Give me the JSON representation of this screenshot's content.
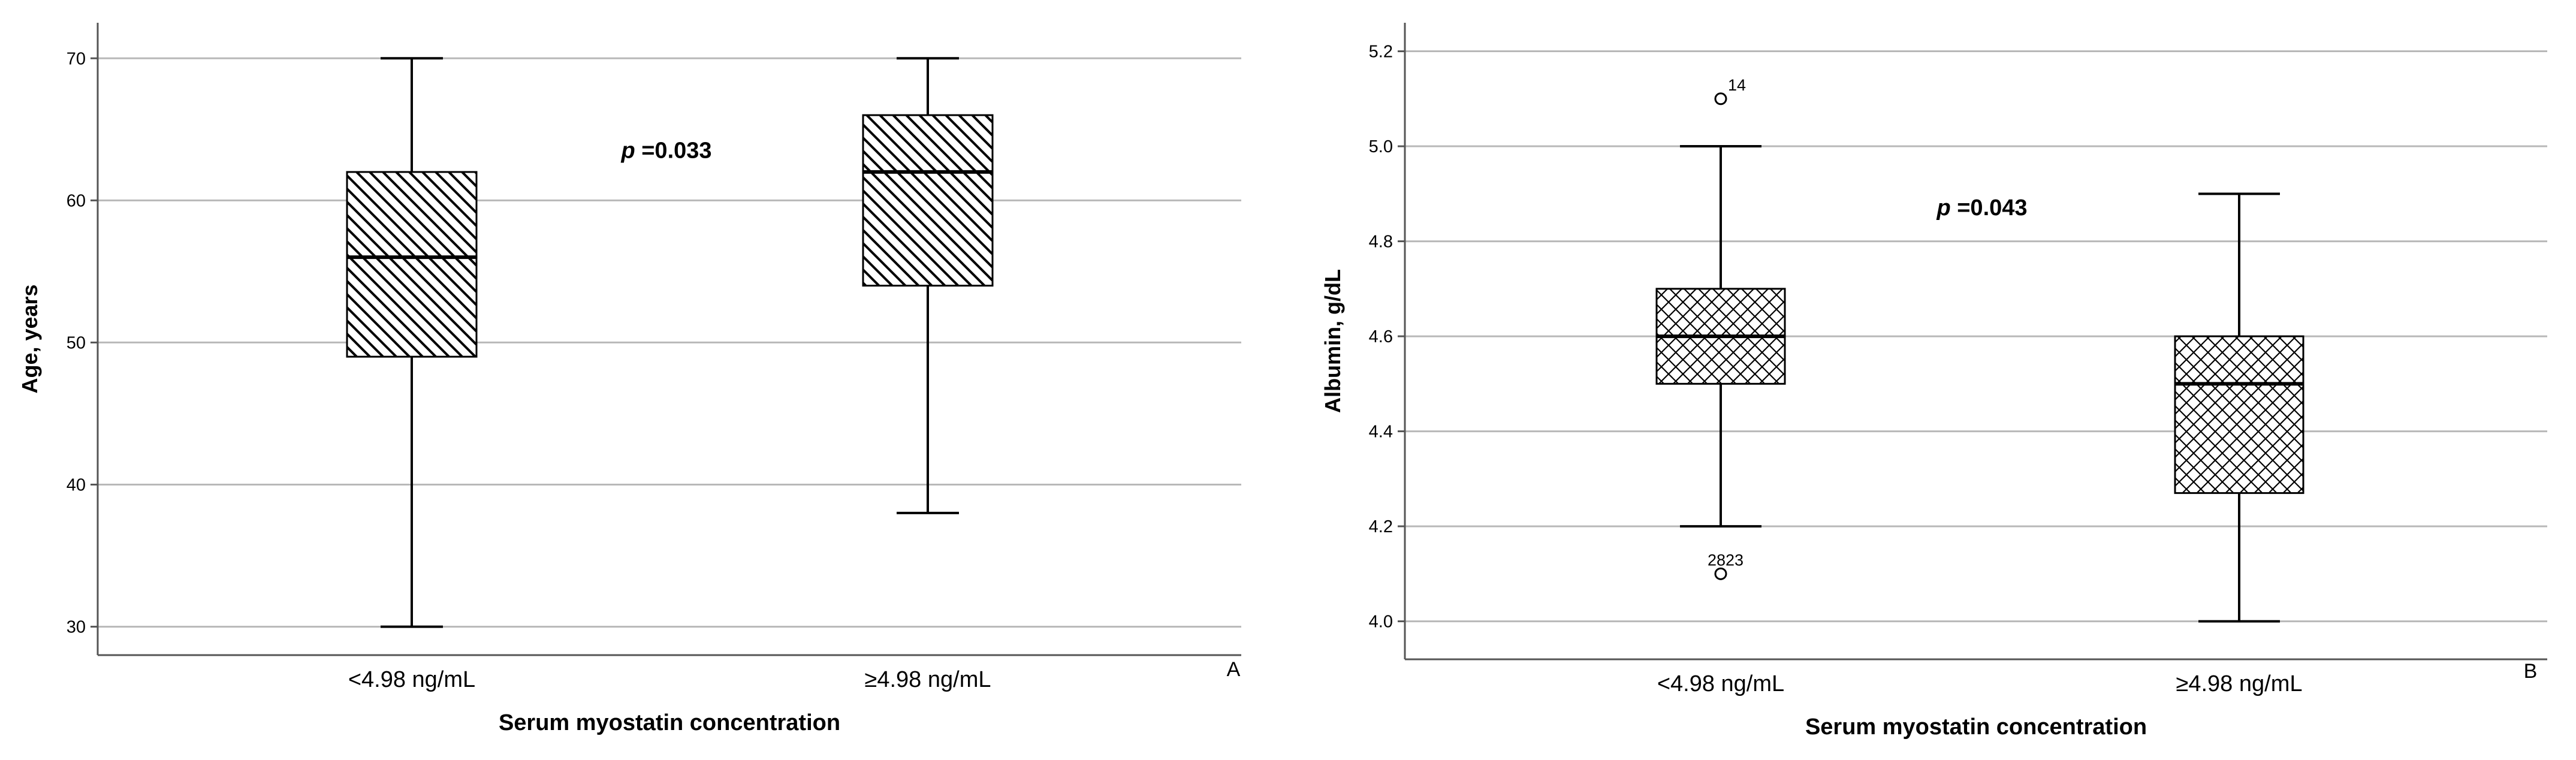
{
  "chart_data": [
    {
      "type": "box",
      "panel_label": "A",
      "xlabel": "Serum myostatin concentration",
      "ylabel": "Age, years",
      "categories": [
        "<4.98 ng/mL",
        "≥4.98 ng/mL"
      ],
      "ylim": [
        28,
        72.5
      ],
      "yticks": [
        30,
        40,
        50,
        60,
        70
      ],
      "grid": true,
      "fill_pattern": "diagonal-hatch",
      "boxes": [
        {
          "category": "<4.98 ng/mL",
          "min": 30,
          "q1": 49,
          "median": 56,
          "q3": 62,
          "max": 70,
          "outliers": []
        },
        {
          "category": "≥4.98 ng/mL",
          "min": 38,
          "q1": 54,
          "median": 62,
          "q3": 66,
          "max": 70,
          "outliers": []
        }
      ],
      "annotation": {
        "italic": "p",
        "text": " =0.033",
        "x_between": 0.5,
        "y": 63.5
      }
    },
    {
      "type": "box",
      "panel_label": "B",
      "xlabel": "Serum myostatin concentration",
      "ylabel": "Albumin, g/dL",
      "categories": [
        "<4.98 ng/mL",
        "≥4.98 ng/mL"
      ],
      "ylim": [
        3.92,
        5.26
      ],
      "yticks": [
        4.0,
        4.2,
        4.4,
        4.6,
        4.8,
        5.0,
        5.2
      ],
      "grid": true,
      "fill_pattern": "crosshatch",
      "boxes": [
        {
          "category": "<4.98 ng/mL",
          "min": 4.2,
          "q1": 4.5,
          "median": 4.6,
          "q3": 4.7,
          "max": 5.0,
          "outliers": [
            {
              "value": 5.1,
              "label": "14"
            },
            {
              "value": 4.1,
              "label": "2823"
            }
          ]
        },
        {
          "category": "≥4.98 ng/mL",
          "min": 4.0,
          "q1": 4.27,
          "median": 4.5,
          "q3": 4.6,
          "max": 4.9,
          "outliers": []
        }
      ],
      "annotation": {
        "italic": "p",
        "text": " =0.043",
        "x_between": 0.5,
        "y": 4.87
      }
    }
  ]
}
